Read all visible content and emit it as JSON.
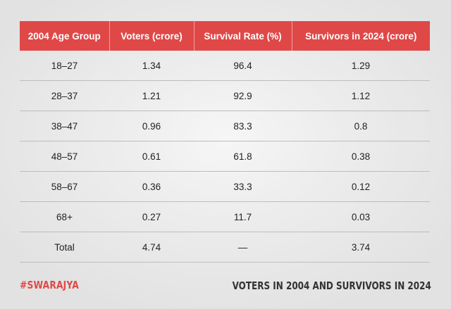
{
  "table": {
    "headers": [
      "2004 Age Group",
      "Voters (crore)",
      "Survival Rate (%)",
      "Survivors in 2024 (crore)"
    ],
    "rows": [
      [
        "18–27",
        "1.34",
        "96.4",
        "1.29"
      ],
      [
        "28–37",
        "1.21",
        "92.9",
        "1.12"
      ],
      [
        "38–47",
        "0.96",
        "83.3",
        "0.8"
      ],
      [
        "48–57",
        "0.61",
        "61.8",
        "0.38"
      ],
      [
        "58–67",
        "0.36",
        "33.3",
        "0.12"
      ],
      [
        "68+",
        "0.27",
        "11.7",
        "0.03"
      ],
      [
        "Total",
        "4.74",
        "—",
        "3.74"
      ]
    ]
  },
  "footer": {
    "brand": "#SWARAJYA",
    "title": "VOTERS IN 2004 AND SURVIVORS IN 2024"
  },
  "colors": {
    "header_bg": "#e04848",
    "brand": "#e04848"
  }
}
